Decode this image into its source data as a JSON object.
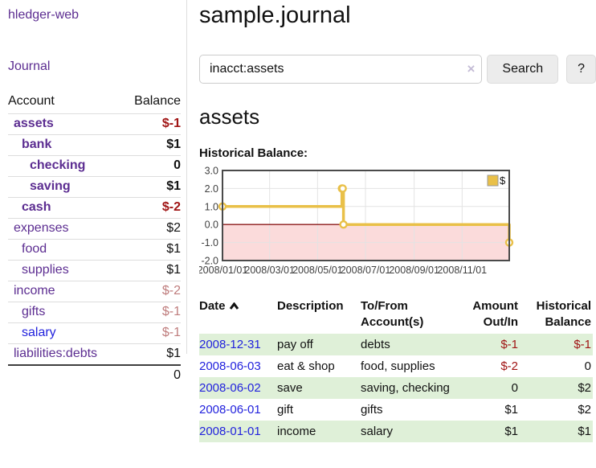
{
  "sidebar": {
    "app_title": "hledger-web",
    "journal_link": "Journal",
    "table": {
      "account_header": "Account",
      "balance_header": "Balance",
      "accounts": [
        {
          "name": "assets",
          "depth": 1,
          "style": "bold",
          "balance": "$-1",
          "bstyle": "neg-strong"
        },
        {
          "name": "bank",
          "depth": 2,
          "style": "bold",
          "balance": "$1",
          "bstyle": "strong"
        },
        {
          "name": "checking",
          "depth": 3,
          "style": "bold",
          "balance": "0",
          "bstyle": "strong"
        },
        {
          "name": "saving",
          "depth": 3,
          "style": "bold",
          "balance": "$1",
          "bstyle": "strong"
        },
        {
          "name": "cash",
          "depth": 2,
          "style": "bold",
          "balance": "$-2",
          "bstyle": "neg-strong"
        },
        {
          "name": "expenses",
          "depth": 1,
          "style": "plain",
          "balance": "$2",
          "bstyle": "plain"
        },
        {
          "name": "food",
          "depth": 2,
          "style": "plain",
          "balance": "$1",
          "bstyle": "plain"
        },
        {
          "name": "supplies",
          "depth": 2,
          "style": "plain",
          "balance": "$1",
          "bstyle": "plain"
        },
        {
          "name": "income",
          "depth": 1,
          "style": "plain",
          "balance": "$-2",
          "bstyle": "neg-faded"
        },
        {
          "name": "gifts",
          "depth": 2,
          "style": "plain",
          "balance": "$-1",
          "bstyle": "neg-faded"
        },
        {
          "name": "salary",
          "depth": 2,
          "style": "blue",
          "balance": "$-1",
          "bstyle": "neg-faded"
        },
        {
          "name": "liabilities:debts",
          "depth": 1,
          "style": "plain",
          "balance": "$1",
          "bstyle": "plain"
        }
      ],
      "total": "0"
    }
  },
  "main": {
    "title": "sample.journal",
    "search": {
      "value": "inacct:assets",
      "clear_icon": "×",
      "button_label": "Search",
      "help_label": "?"
    },
    "account_heading": "assets",
    "table": {
      "headers": [
        "Date",
        "Description",
        "To/From Account(s)",
        "Amount Out/In",
        "Historical Balance"
      ],
      "sort_column": "Date",
      "sort_direction": "ascending",
      "rows": [
        {
          "date": "2008-12-31",
          "description": "pay off",
          "accounts": "debts",
          "amount": "$-1",
          "amount_neg": true,
          "balance": "$-1",
          "balance_neg": true
        },
        {
          "date": "2008-06-03",
          "description": "eat & shop",
          "accounts": "food, supplies",
          "amount": "$-2",
          "amount_neg": true,
          "balance": "0",
          "balance_neg": false
        },
        {
          "date": "2008-06-02",
          "description": "save",
          "accounts": "saving, checking",
          "amount": "0",
          "amount_neg": false,
          "balance": "$2",
          "balance_neg": false
        },
        {
          "date": "2008-06-01",
          "description": "gift",
          "accounts": "gifts",
          "amount": "$1",
          "amount_neg": false,
          "balance": "$2",
          "balance_neg": false
        },
        {
          "date": "2008-01-01",
          "description": "income",
          "accounts": "salary",
          "amount": "$1",
          "amount_neg": false,
          "balance": "$1",
          "balance_neg": false
        }
      ]
    }
  },
  "chart_data": {
    "type": "line",
    "step": true,
    "title": "Historical Balance:",
    "series": [
      {
        "name": "$",
        "color": "#e9c048",
        "points": [
          [
            "2008-01-01",
            1
          ],
          [
            "2008-06-01",
            2
          ],
          [
            "2008-06-02",
            2
          ],
          [
            "2008-06-03",
            0
          ],
          [
            "2008-12-31",
            -1
          ]
        ]
      }
    ],
    "x_range": [
      "2008-01-01",
      "2008-12-31"
    ],
    "ylim": [
      -2,
      3
    ],
    "y_ticks": [
      "3.0",
      "2.0",
      "1.0",
      "0.0",
      "-1.0",
      "-2.0"
    ],
    "x_ticks": [
      "2008/01/01",
      "2008/03/01",
      "2008/05/01",
      "2008/07/01",
      "2008/09/01",
      "2008/11/01"
    ],
    "grid": true,
    "legend_position": "top-right",
    "negative_region_color": "#fbdbdb",
    "zero_line_color": "#8b1a1a",
    "grid_color": "#e3e3e3",
    "border_color": "#4a4a4a"
  }
}
